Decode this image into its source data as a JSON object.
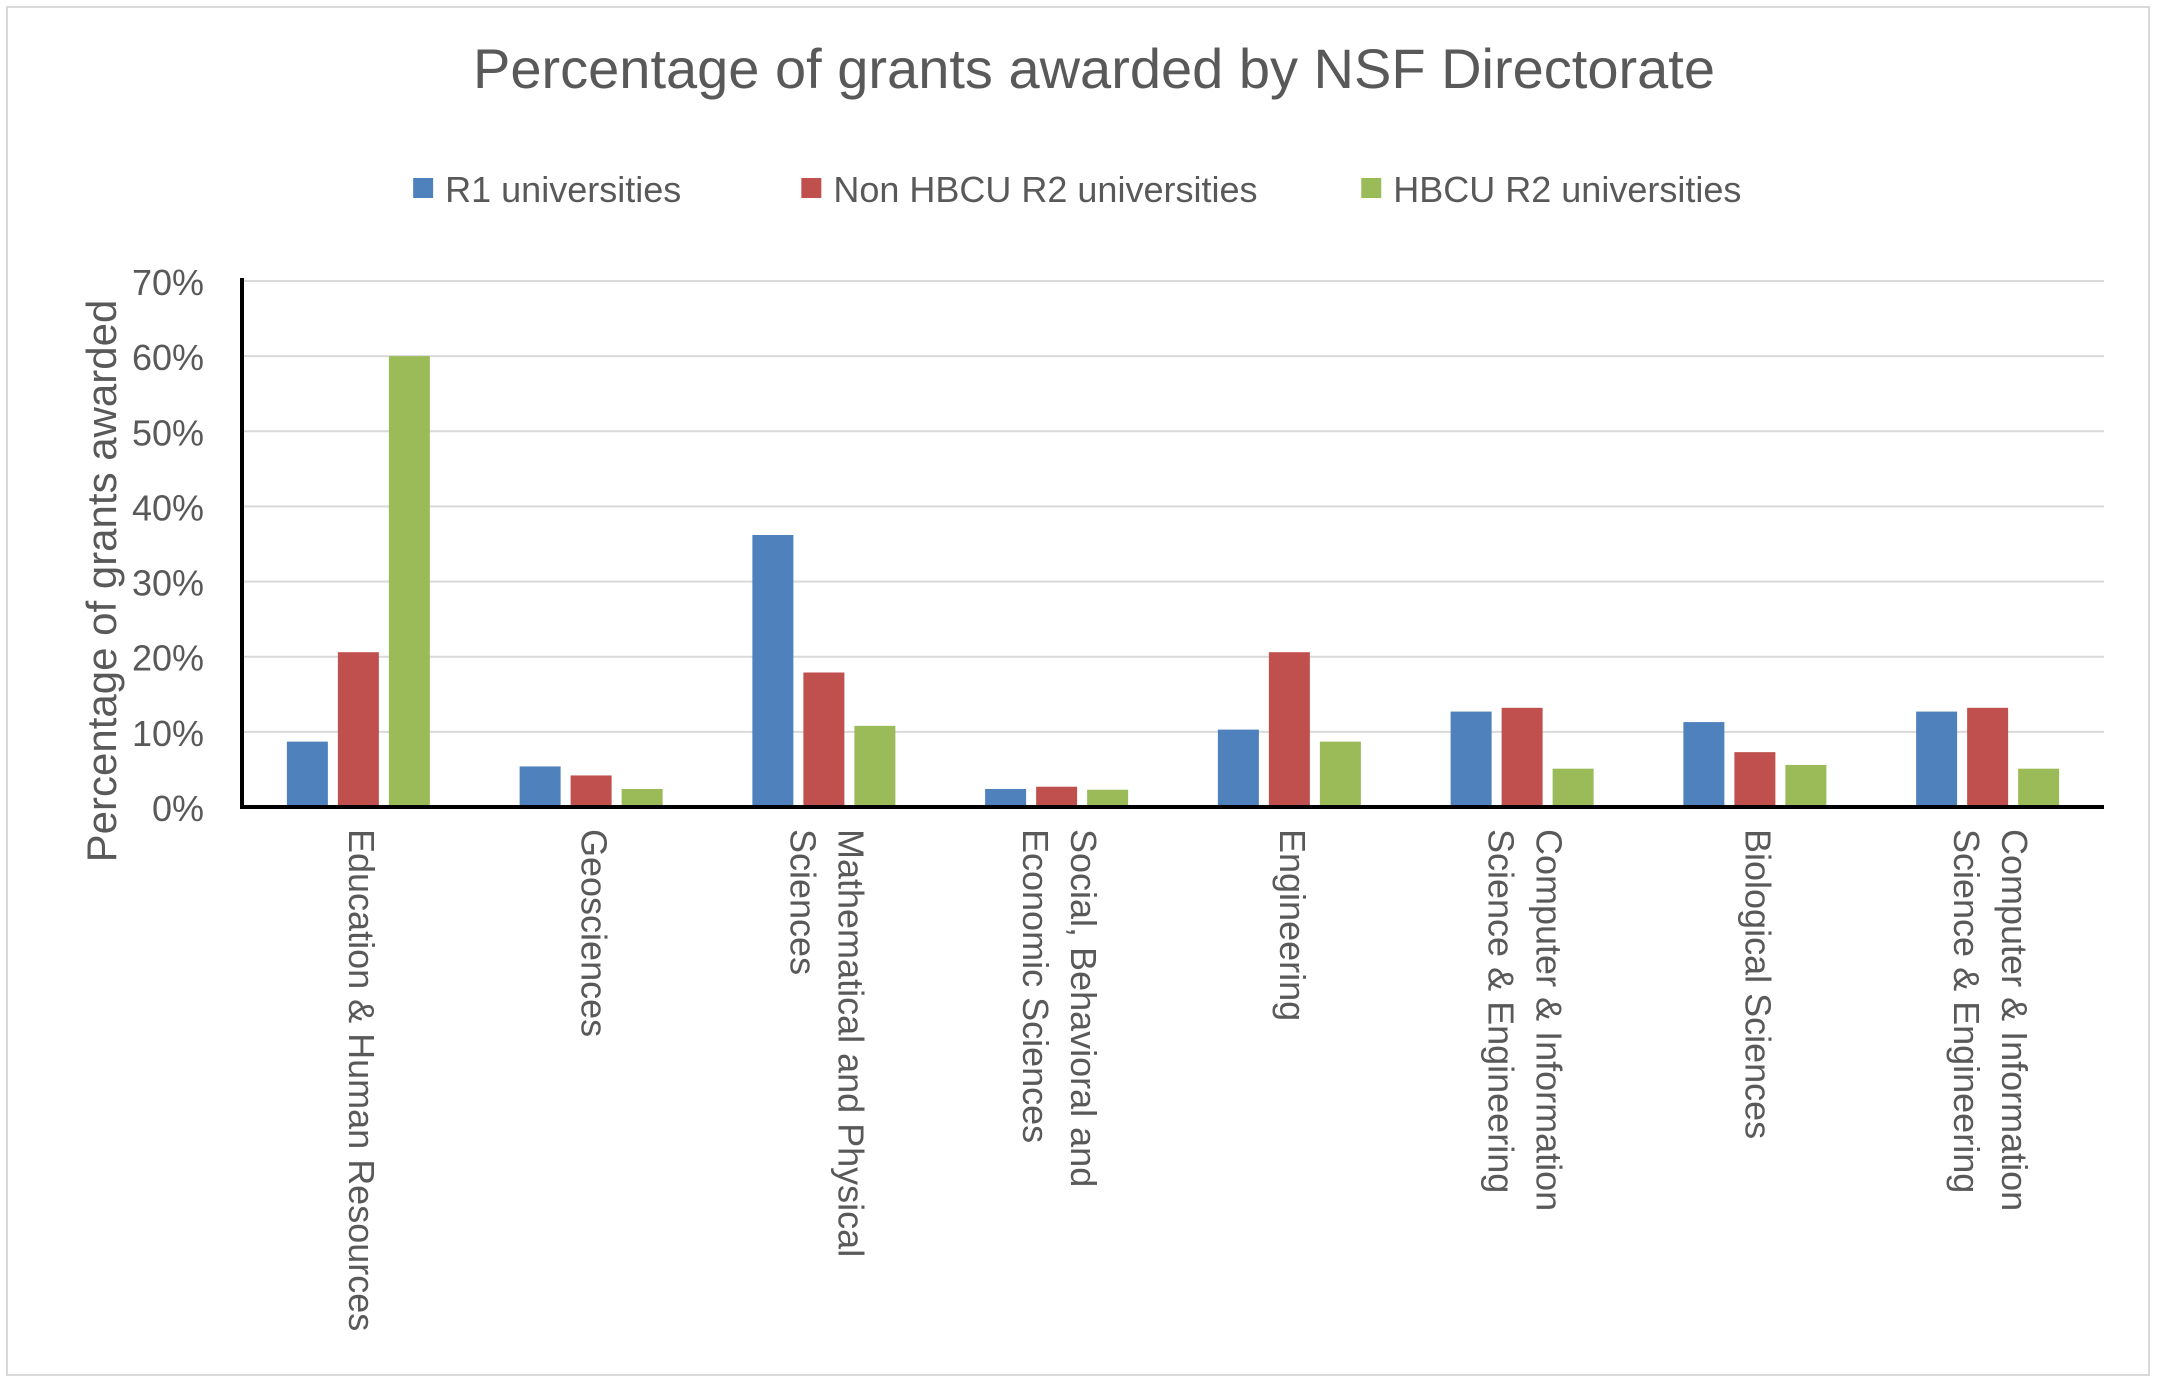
{
  "chart_data": {
    "type": "bar",
    "title": "Percentage of grants awarded by NSF Directorate",
    "xlabel": "",
    "ylabel": "Percentage of grants awarded",
    "ylim": [
      0,
      70
    ],
    "yticks": [
      0,
      10,
      20,
      30,
      40,
      50,
      60,
      70
    ],
    "ytick_labels": [
      "0%",
      "10%",
      "20%",
      "30%",
      "40%",
      "50%",
      "60%",
      "70%"
    ],
    "grid": true,
    "legend_position": "top",
    "categories": [
      [
        "Education & Human Resources"
      ],
      [
        "Geosciences"
      ],
      [
        "Mathematical and Physical",
        "Sciences"
      ],
      [
        "Social, Behavioral and",
        "Economic Sciences"
      ],
      [
        "Engineering"
      ],
      [
        "Computer & Information",
        "Science & Engineering"
      ],
      [
        "Biological Sciences"
      ],
      [
        "Computer & Information",
        "Science & Engineering"
      ]
    ],
    "series": [
      {
        "name": "R1 universities",
        "color": "#4f81bd",
        "values": [
          8.7,
          5.4,
          36.2,
          2.4,
          10.3,
          12.7,
          11.3,
          12.7
        ]
      },
      {
        "name": "Non HBCU R2 universities",
        "color": "#c0504d",
        "values": [
          20.6,
          4.2,
          17.9,
          2.7,
          20.6,
          13.2,
          7.3,
          13.2
        ]
      },
      {
        "name": "HBCU R2 universities",
        "color": "#9bbb59",
        "values": [
          60.0,
          2.4,
          10.8,
          2.3,
          8.7,
          5.1,
          5.6,
          5.1
        ]
      }
    ]
  }
}
